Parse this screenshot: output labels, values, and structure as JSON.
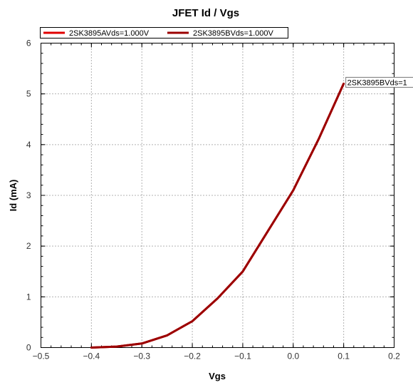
{
  "chart_data": {
    "type": "line",
    "title": "JFET Id / Vgs",
    "xlabel": "Vgs",
    "ylabel": "Id (mA)",
    "xlim": [
      -0.5,
      0.2
    ],
    "ylim": [
      0,
      6
    ],
    "xticks": [
      -0.5,
      -0.4,
      -0.3,
      -0.2,
      -0.1,
      0.0,
      0.1,
      0.2
    ],
    "xtick_labels": [
      "−0.5",
      "−0.4",
      "−0.3",
      "−0.2",
      "−0.1",
      "0.0",
      "0.1",
      "0.2"
    ],
    "yticks": [
      0,
      1,
      2,
      3,
      4,
      5,
      6
    ],
    "ytick_labels": [
      "0",
      "1",
      "2",
      "3",
      "4",
      "5",
      "6"
    ],
    "grid": true,
    "legend_position": "top-left",
    "series": [
      {
        "name": "2SK3895AVds=1.000V",
        "color": "#e00000",
        "x": [
          -0.4,
          -0.35,
          -0.3,
          -0.25,
          -0.2,
          -0.15,
          -0.1,
          -0.05,
          0.0,
          0.05,
          0.1
        ],
        "y": [
          0.0,
          0.02,
          0.08,
          0.24,
          0.52,
          0.97,
          1.5,
          2.3,
          3.1,
          4.1,
          5.2
        ]
      },
      {
        "name": "2SK3895BVds=1.000V",
        "color": "#9b0000",
        "x": [
          -0.4,
          -0.35,
          -0.3,
          -0.25,
          -0.2,
          -0.15,
          -0.1,
          -0.05,
          0.0,
          0.05,
          0.1
        ],
        "y": [
          0.0,
          0.02,
          0.08,
          0.24,
          0.52,
          0.97,
          1.5,
          2.3,
          3.1,
          4.1,
          5.2
        ]
      }
    ],
    "annotation": {
      "text": "2SK3895BVds=1",
      "series": 1,
      "x": 0.1,
      "y": 5.2
    }
  }
}
